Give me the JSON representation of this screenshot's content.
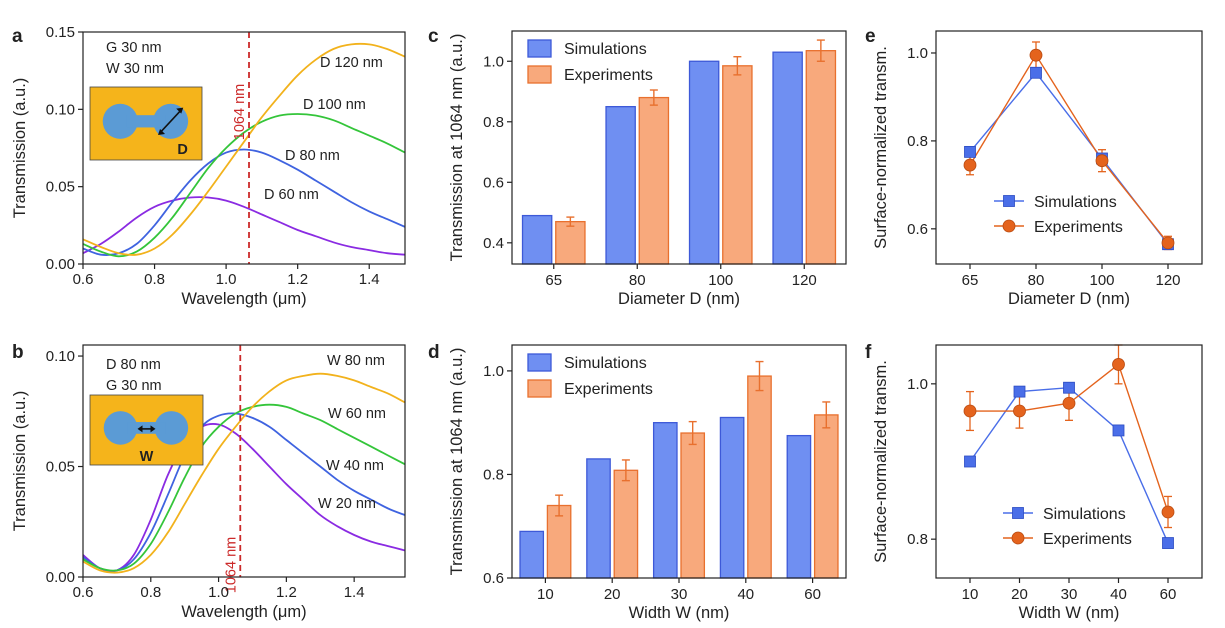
{
  "colors": {
    "blue": "#3f63e0",
    "green": "#34c53a",
    "orange": "#f2b21c",
    "purple": "#8a2be2",
    "dash": "#cc2a2a",
    "bar_blue_fill": "#6f8ff2",
    "bar_blue_edge": "#3d59d8",
    "bar_orange_fill": "#f8a97c",
    "bar_orange_edge": "#e8702e",
    "marker_blue": "#4a6ee8",
    "marker_orange": "#e4631d",
    "inset_gold": "#f5b41b",
    "inset_blue": "#5b9bd5"
  },
  "chart_data": [
    {
      "id": "a",
      "panel_label": "a",
      "type": "line",
      "xlabel": "Wavelength (μm)",
      "ylabel": "Transmission (a.u.)",
      "xlim": [
        0.6,
        1.5
      ],
      "ylim": [
        0,
        0.15
      ],
      "xticks": [
        0.6,
        0.8,
        1.0,
        1.2,
        1.4
      ],
      "yticks": [
        0,
        0.05,
        0.1,
        0.15
      ],
      "ytick_labels": [
        "0.00",
        "0.05",
        "0.10",
        "0.15"
      ],
      "xtick_labels": [
        "0.6",
        "0.8",
        "1.0",
        "1.2",
        "1.4"
      ],
      "inset_text": [
        "G 30 nm",
        "W 30 nm"
      ],
      "inset_label": "D",
      "vline": {
        "x": 1.064,
        "label": "1064 nm"
      },
      "series": [
        {
          "name": "D 60 nm",
          "color_key": "purple",
          "x": [
            0.6,
            0.65,
            0.7,
            0.75,
            0.8,
            0.85,
            0.9,
            0.95,
            1.0,
            1.05,
            1.1,
            1.15,
            1.2,
            1.25,
            1.3,
            1.35,
            1.4,
            1.45,
            1.5
          ],
          "y": [
            0.007,
            0.013,
            0.021,
            0.03,
            0.037,
            0.041,
            0.043,
            0.043,
            0.041,
            0.037,
            0.032,
            0.027,
            0.022,
            0.018,
            0.014,
            0.011,
            0.009,
            0.007,
            0.006
          ]
        },
        {
          "name": "D 80 nm",
          "color_key": "blue",
          "x": [
            0.6,
            0.65,
            0.7,
            0.75,
            0.8,
            0.85,
            0.9,
            0.95,
            1.0,
            1.05,
            1.1,
            1.15,
            1.2,
            1.25,
            1.3,
            1.35,
            1.4,
            1.45,
            1.5
          ],
          "y": [
            0.01,
            0.006,
            0.007,
            0.013,
            0.025,
            0.04,
            0.054,
            0.065,
            0.072,
            0.074,
            0.072,
            0.067,
            0.061,
            0.054,
            0.047,
            0.04,
            0.034,
            0.029,
            0.024
          ]
        },
        {
          "name": "D 100 nm",
          "color_key": "green",
          "x": [
            0.6,
            0.65,
            0.7,
            0.75,
            0.8,
            0.85,
            0.9,
            0.95,
            1.0,
            1.05,
            1.1,
            1.15,
            1.2,
            1.25,
            1.3,
            1.35,
            1.4,
            1.45,
            1.5
          ],
          "y": [
            0.013,
            0.008,
            0.005,
            0.008,
            0.017,
            0.03,
            0.046,
            0.062,
            0.075,
            0.085,
            0.092,
            0.096,
            0.097,
            0.096,
            0.093,
            0.088,
            0.083,
            0.078,
            0.072
          ]
        },
        {
          "name": "D 120 nm",
          "color_key": "orange",
          "x": [
            0.6,
            0.65,
            0.7,
            0.75,
            0.8,
            0.85,
            0.9,
            0.95,
            1.0,
            1.05,
            1.1,
            1.15,
            1.2,
            1.25,
            1.3,
            1.35,
            1.4,
            1.45,
            1.5
          ],
          "y": [
            0.016,
            0.011,
            0.007,
            0.006,
            0.01,
            0.019,
            0.032,
            0.047,
            0.063,
            0.079,
            0.095,
            0.109,
            0.122,
            0.132,
            0.139,
            0.142,
            0.142,
            0.139,
            0.134
          ]
        }
      ]
    },
    {
      "id": "b",
      "panel_label": "b",
      "type": "line",
      "xlabel": "Wavelength (μm)",
      "ylabel": "Transmission (a.u.)",
      "xlim": [
        0.6,
        1.55
      ],
      "ylim": [
        0,
        0.105
      ],
      "xticks": [
        0.6,
        0.8,
        1.0,
        1.2,
        1.4
      ],
      "yticks": [
        0,
        0.05,
        0.1
      ],
      "ytick_labels": [
        "0.00",
        "0.05",
        "0.10"
      ],
      "xtick_labels": [
        "0.6",
        "0.8",
        "1.0",
        "1.2",
        "1.4"
      ],
      "inset_text": [
        "D 80 nm",
        "G 30 nm"
      ],
      "inset_label": "W",
      "vline": {
        "x": 1.064,
        "label": "1064 nm"
      },
      "series": [
        {
          "name": "W 20 nm",
          "color_key": "purple",
          "x": [
            0.6,
            0.65,
            0.7,
            0.75,
            0.8,
            0.85,
            0.9,
            0.95,
            1.0,
            1.05,
            1.1,
            1.15,
            1.2,
            1.25,
            1.3,
            1.35,
            1.4,
            1.45,
            1.5,
            1.55
          ],
          "y": [
            0.01,
            0.004,
            0.003,
            0.01,
            0.026,
            0.046,
            0.061,
            0.068,
            0.069,
            0.065,
            0.058,
            0.05,
            0.042,
            0.035,
            0.028,
            0.023,
            0.019,
            0.016,
            0.014,
            0.012
          ]
        },
        {
          "name": "W 40 nm",
          "color_key": "blue",
          "x": [
            0.6,
            0.65,
            0.7,
            0.75,
            0.8,
            0.85,
            0.9,
            0.95,
            1.0,
            1.05,
            1.1,
            1.15,
            1.2,
            1.25,
            1.3,
            1.35,
            1.4,
            1.45,
            1.5,
            1.55
          ],
          "y": [
            0.009,
            0.004,
            0.003,
            0.008,
            0.02,
            0.037,
            0.055,
            0.068,
            0.073,
            0.074,
            0.072,
            0.068,
            0.062,
            0.056,
            0.05,
            0.044,
            0.039,
            0.035,
            0.031,
            0.028
          ]
        },
        {
          "name": "W 60 nm",
          "color_key": "green",
          "x": [
            0.6,
            0.65,
            0.7,
            0.75,
            0.8,
            0.85,
            0.9,
            0.95,
            1.0,
            1.05,
            1.1,
            1.15,
            1.2,
            1.25,
            1.3,
            1.35,
            1.4,
            1.45,
            1.5,
            1.55
          ],
          "y": [
            0.008,
            0.004,
            0.003,
            0.006,
            0.015,
            0.029,
            0.045,
            0.059,
            0.068,
            0.074,
            0.077,
            0.078,
            0.077,
            0.074,
            0.071,
            0.067,
            0.063,
            0.059,
            0.055,
            0.051
          ]
        },
        {
          "name": "W 80 nm",
          "color_key": "orange",
          "x": [
            0.6,
            0.65,
            0.7,
            0.75,
            0.8,
            0.85,
            0.9,
            0.95,
            1.0,
            1.05,
            1.1,
            1.15,
            1.2,
            1.25,
            1.3,
            1.35,
            1.4,
            1.45,
            1.5,
            1.55
          ],
          "y": [
            0.007,
            0.003,
            0.002,
            0.004,
            0.01,
            0.02,
            0.033,
            0.046,
            0.058,
            0.068,
            0.077,
            0.084,
            0.089,
            0.091,
            0.092,
            0.091,
            0.089,
            0.086,
            0.083,
            0.079
          ]
        }
      ]
    },
    {
      "id": "c",
      "panel_label": "c",
      "type": "bar",
      "xlabel": "Diameter D (nm)",
      "ylabel": "Transmission at 1064 nm (a.u.)",
      "categories": [
        "65",
        "80",
        "100",
        "120"
      ],
      "ylim": [
        0.33,
        1.1
      ],
      "yticks": [
        0.4,
        0.6,
        0.8,
        1.0
      ],
      "ytick_labels": [
        "0.4",
        "0.6",
        "0.8",
        "1.0"
      ],
      "legend": "top-left",
      "series": [
        {
          "name": "Simulations",
          "color_key": "blue",
          "values": [
            0.49,
            0.85,
            1.0,
            1.03
          ]
        },
        {
          "name": "Experiments",
          "color_key": "orange",
          "values": [
            0.47,
            0.88,
            0.985,
            1.035
          ],
          "errors": [
            0.015,
            0.025,
            0.03,
            0.035
          ]
        }
      ]
    },
    {
      "id": "d",
      "panel_label": "d",
      "type": "bar",
      "xlabel": "Width W (nm)",
      "ylabel": "Transmission at 1064 nm (a.u.)",
      "categories": [
        "10",
        "20",
        "30",
        "40",
        "60"
      ],
      "ylim": [
        0.6,
        1.05
      ],
      "yticks": [
        0.6,
        0.8,
        1.0
      ],
      "ytick_labels": [
        "0.6",
        "0.8",
        "1.0"
      ],
      "legend": "top-left",
      "series": [
        {
          "name": "Simulations",
          "color_key": "blue",
          "values": [
            0.69,
            0.83,
            0.9,
            0.91,
            0.875
          ]
        },
        {
          "name": "Experiments",
          "color_key": "orange",
          "values": [
            0.74,
            0.808,
            0.88,
            0.99,
            0.915
          ],
          "errors": [
            0.02,
            0.02,
            0.022,
            0.028,
            0.025
          ]
        }
      ]
    },
    {
      "id": "e",
      "panel_label": "e",
      "type": "line",
      "xlabel": "Diameter D (nm)",
      "ylabel": "Surface-normalized transm.",
      "categories": [
        "65",
        "80",
        "100",
        "120"
      ],
      "ylim": [
        0.52,
        1.05
      ],
      "yticks": [
        0.6,
        0.8,
        1.0
      ],
      "ytick_labels": [
        "0.6",
        "0.8",
        "1.0"
      ],
      "legend": "lower-left",
      "series": [
        {
          "name": "Simulations",
          "color_key": "blue",
          "marker": "square",
          "values": [
            0.775,
            0.955,
            0.76,
            0.565
          ]
        },
        {
          "name": "Experiments",
          "color_key": "orange",
          "marker": "circle",
          "values": [
            0.745,
            0.995,
            0.755,
            0.568
          ],
          "errors": [
            0.022,
            0.03,
            0.025,
            0.015
          ]
        }
      ]
    },
    {
      "id": "f",
      "panel_label": "f",
      "type": "line",
      "xlabel": "Width W (nm)",
      "ylabel": "Surface-normalized transm.",
      "categories": [
        "10",
        "20",
        "30",
        "40",
        "60"
      ],
      "ylim": [
        0.75,
        1.05
      ],
      "yticks": [
        0.8,
        1.0
      ],
      "ytick_labels": [
        "0.8",
        "1.0"
      ],
      "legend": "lower-left",
      "series": [
        {
          "name": "Simulations",
          "color_key": "blue",
          "marker": "square",
          "values": [
            0.9,
            0.99,
            0.995,
            0.94,
            0.795
          ]
        },
        {
          "name": "Experiments",
          "color_key": "orange",
          "marker": "circle",
          "values": [
            0.965,
            0.965,
            0.975,
            1.025,
            0.835
          ],
          "errors": [
            0.025,
            0.022,
            0.022,
            0.025,
            0.02
          ]
        }
      ]
    }
  ]
}
